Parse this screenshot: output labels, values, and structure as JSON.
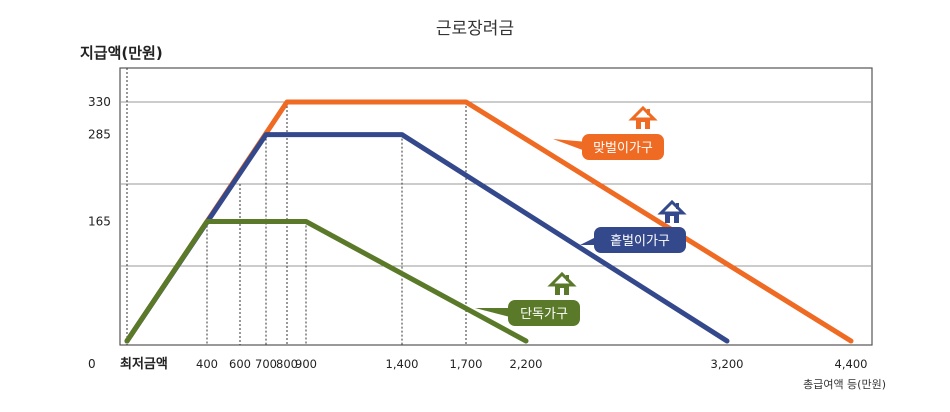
{
  "chart_data": {
    "type": "line",
    "title": "근로장려금",
    "ylabel": "지급액(만원)",
    "xlabel": "총급여액 등(만원)",
    "x_origin_label": "0",
    "x_min_label": "최저금액",
    "x_tick_labels": [
      "400",
      "600",
      "700",
      "800",
      "900",
      "1,400",
      "1,700",
      "2,200",
      "3,200",
      "4,400"
    ],
    "y_tick_labels": [
      "330",
      "285",
      "165"
    ],
    "series": [
      {
        "name": "맞벌이가구",
        "color": "#ef6a22",
        "points": [
          [
            0,
            0
          ],
          [
            800,
            330
          ],
          [
            1700,
            330
          ],
          [
            4400,
            0
          ]
        ]
      },
      {
        "name": "홑벌이가구",
        "color": "#34488c",
        "points": [
          [
            0,
            0
          ],
          [
            700,
            285
          ],
          [
            1400,
            285
          ],
          [
            3200,
            0
          ]
        ]
      },
      {
        "name": "단독가구",
        "color": "#5a7a2a",
        "points": [
          [
            0,
            0
          ],
          [
            400,
            165
          ],
          [
            900,
            165
          ],
          [
            2200,
            0
          ]
        ]
      }
    ]
  }
}
